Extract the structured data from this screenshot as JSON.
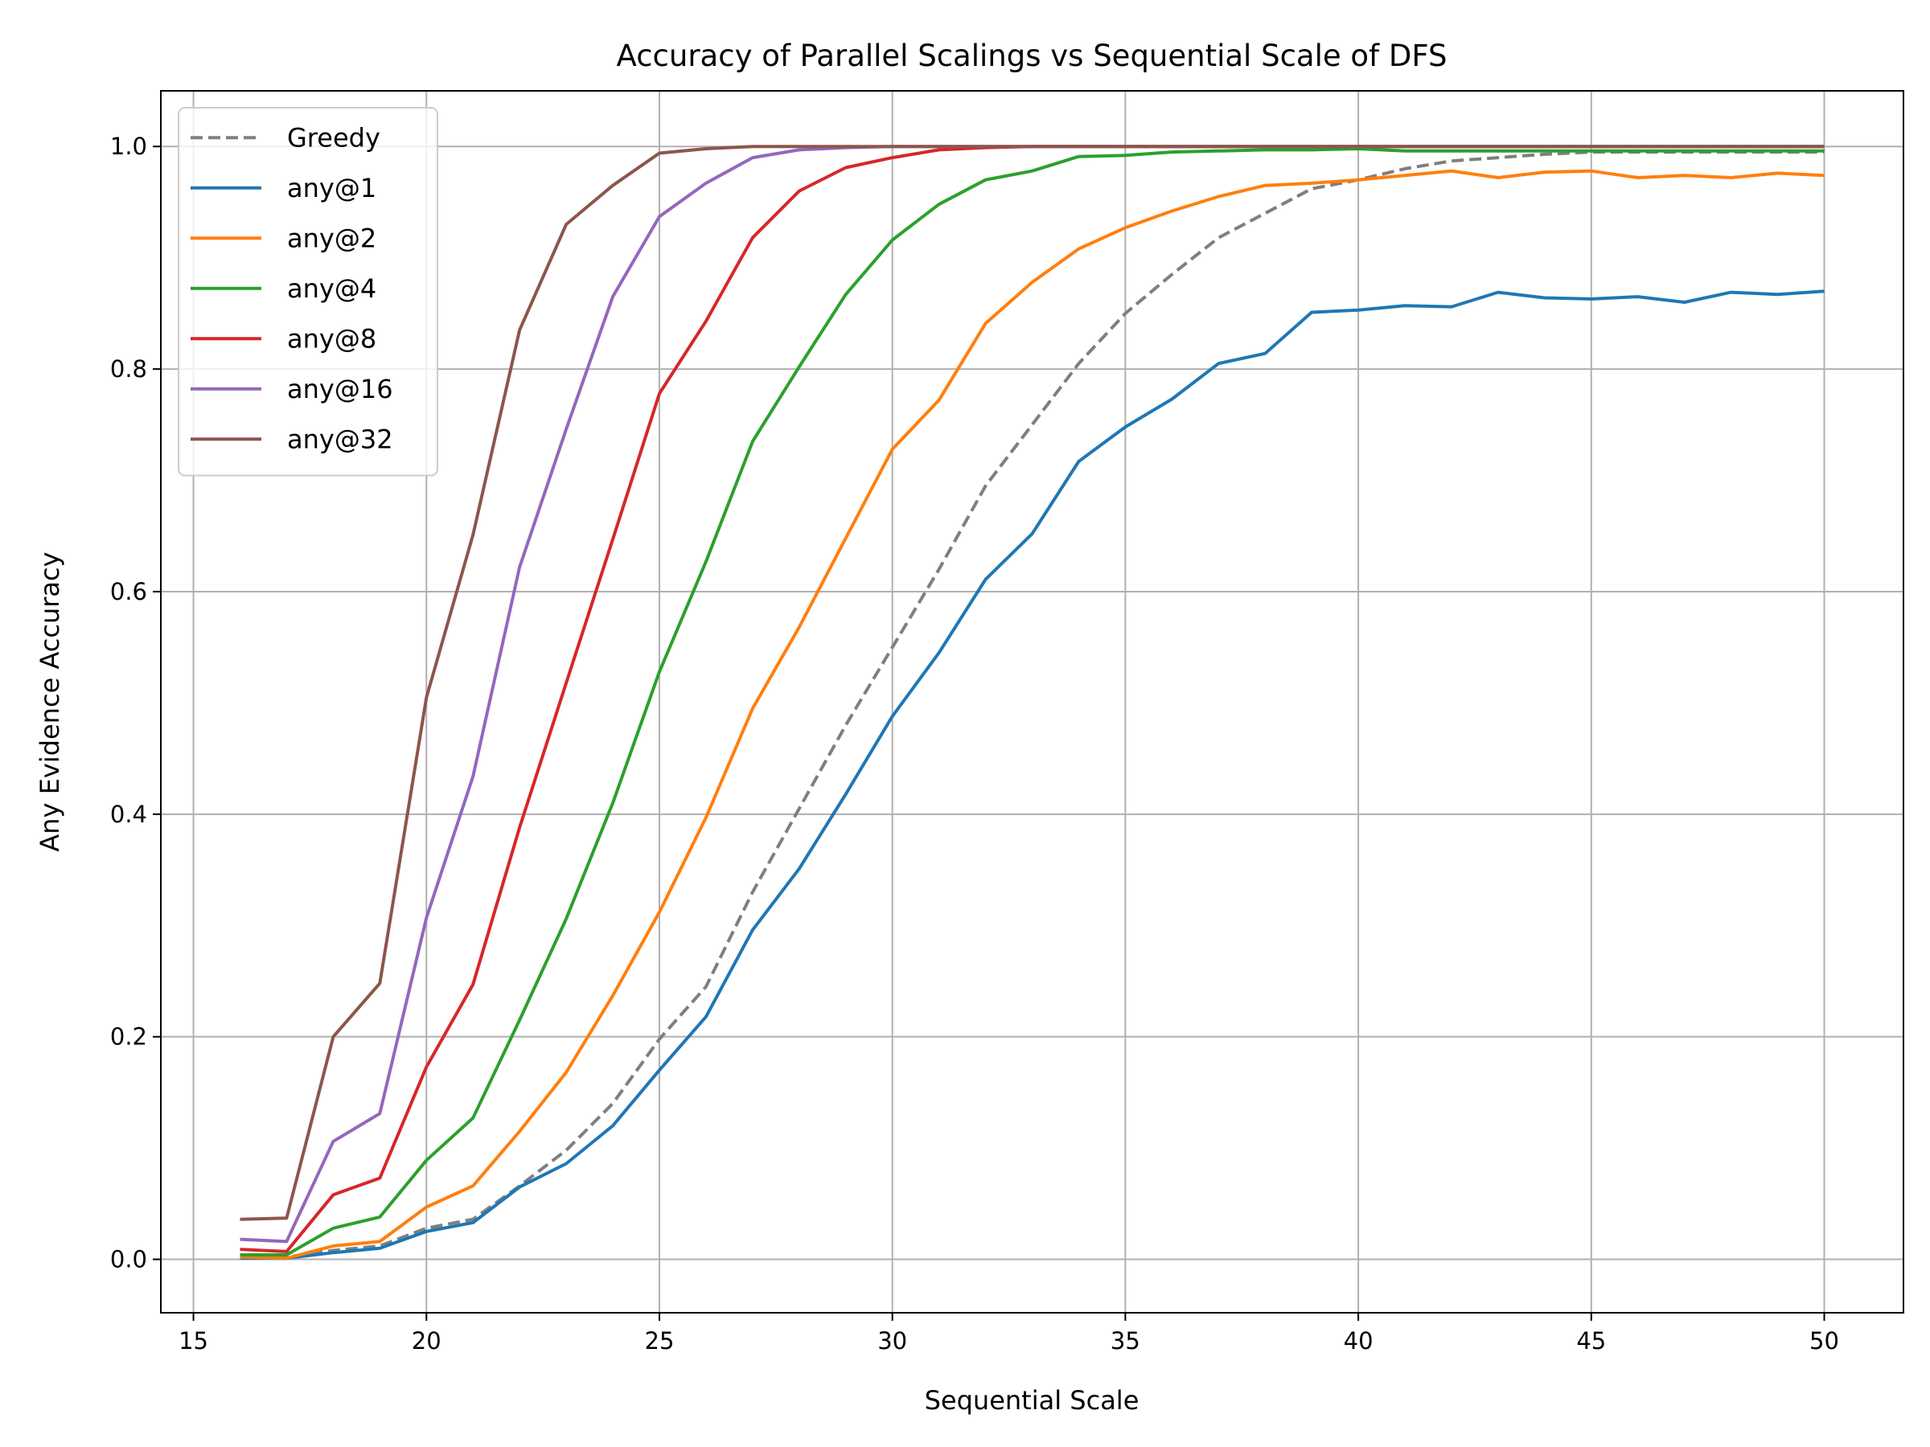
{
  "chart_data": {
    "type": "line",
    "title": "Accuracy of Parallel Scalings vs Sequential Scale of DFS",
    "xlabel": "Sequential Scale",
    "ylabel": "Any Evidence Accuracy",
    "xlim": [
      14.3,
      51.7
    ],
    "ylim": [
      -0.048,
      1.05
    ],
    "xticks": [
      15,
      20,
      25,
      30,
      35,
      40,
      45,
      50
    ],
    "yticks": [
      0.0,
      0.2,
      0.4,
      0.6,
      0.8,
      1.0
    ],
    "ytick_labels": [
      "0.0",
      "0.2",
      "0.4",
      "0.6",
      "0.8",
      "1.0"
    ],
    "grid": true,
    "legend_position": "top-left",
    "x": [
      16,
      17,
      18,
      19,
      20,
      21,
      22,
      23,
      24,
      25,
      26,
      27,
      28,
      29,
      30,
      31,
      32,
      33,
      34,
      35,
      36,
      37,
      38,
      39,
      40,
      41,
      42,
      43,
      44,
      45,
      46,
      47,
      48,
      49,
      50
    ],
    "series": [
      {
        "name": "Greedy",
        "color": "#7f7f7f",
        "dashed": true,
        "values": [
          0.002,
          0.002,
          0.008,
          0.012,
          0.028,
          0.036,
          0.066,
          0.098,
          0.14,
          0.198,
          0.245,
          0.33,
          0.405,
          0.48,
          0.55,
          0.62,
          0.695,
          0.75,
          0.805,
          0.85,
          0.885,
          0.918,
          0.94,
          0.962,
          0.97,
          0.98,
          0.987,
          0.99,
          0.993,
          0.995,
          0.995,
          0.995,
          0.995,
          0.995,
          0.995
        ]
      },
      {
        "name": "any@1",
        "color": "#1f77b4",
        "dashed": false,
        "values": [
          0.001,
          0.001,
          0.006,
          0.01,
          0.025,
          0.033,
          0.065,
          0.086,
          0.12,
          0.17,
          0.218,
          0.296,
          0.351,
          0.418,
          0.488,
          0.545,
          0.611,
          0.652,
          0.717,
          0.748,
          0.773,
          0.805,
          0.814,
          0.851,
          0.853,
          0.857,
          0.856,
          0.869,
          0.864,
          0.863,
          0.865,
          0.86,
          0.869,
          0.867,
          0.87
        ]
      },
      {
        "name": "any@2",
        "color": "#ff7f0e",
        "dashed": false,
        "values": [
          0.002,
          0.001,
          0.012,
          0.016,
          0.047,
          0.066,
          0.115,
          0.168,
          0.237,
          0.312,
          0.397,
          0.495,
          0.568,
          0.648,
          0.728,
          0.772,
          0.841,
          0.878,
          0.908,
          0.927,
          0.942,
          0.955,
          0.965,
          0.967,
          0.97,
          0.974,
          0.978,
          0.972,
          0.977,
          0.978,
          0.972,
          0.974,
          0.972,
          0.976,
          0.974
        ]
      },
      {
        "name": "any@4",
        "color": "#2ca02c",
        "dashed": false,
        "values": [
          0.004,
          0.004,
          0.028,
          0.038,
          0.089,
          0.127,
          0.215,
          0.306,
          0.41,
          0.528,
          0.627,
          0.735,
          0.802,
          0.867,
          0.916,
          0.948,
          0.97,
          0.978,
          0.991,
          0.992,
          0.995,
          0.996,
          0.997,
          0.997,
          0.998,
          0.996,
          0.996,
          0.996,
          0.996,
          0.996,
          0.996,
          0.996,
          0.996,
          0.996,
          0.996
        ]
      },
      {
        "name": "any@8",
        "color": "#d62728",
        "dashed": false,
        "values": [
          0.009,
          0.007,
          0.058,
          0.073,
          0.173,
          0.247,
          0.388,
          0.518,
          0.647,
          0.778,
          0.843,
          0.918,
          0.96,
          0.981,
          0.99,
          0.997,
          0.999,
          1.0,
          1.0,
          1.0,
          1.0,
          1.0,
          1.0,
          1.0,
          1.0,
          1.0,
          1.0,
          1.0,
          1.0,
          1.0,
          1.0,
          1.0,
          1.0,
          1.0,
          1.0
        ]
      },
      {
        "name": "any@16",
        "color": "#9467bd",
        "dashed": false,
        "values": [
          0.018,
          0.016,
          0.106,
          0.131,
          0.307,
          0.434,
          0.622,
          0.746,
          0.865,
          0.937,
          0.967,
          0.99,
          0.997,
          0.999,
          1.0,
          1.0,
          1.0,
          1.0,
          1.0,
          1.0,
          1.0,
          1.0,
          1.0,
          1.0,
          1.0,
          1.0,
          1.0,
          1.0,
          1.0,
          1.0,
          1.0,
          1.0,
          1.0,
          1.0,
          1.0
        ]
      },
      {
        "name": "any@32",
        "color": "#8c564b",
        "dashed": false,
        "values": [
          0.036,
          0.037,
          0.2,
          0.248,
          0.505,
          0.651,
          0.835,
          0.93,
          0.965,
          0.994,
          0.998,
          1.0,
          1.0,
          1.0,
          1.0,
          1.0,
          1.0,
          1.0,
          1.0,
          1.0,
          1.0,
          1.0,
          1.0,
          1.0,
          1.0,
          1.0,
          1.0,
          1.0,
          1.0,
          1.0,
          1.0,
          1.0,
          1.0,
          1.0,
          1.0
        ]
      }
    ]
  }
}
